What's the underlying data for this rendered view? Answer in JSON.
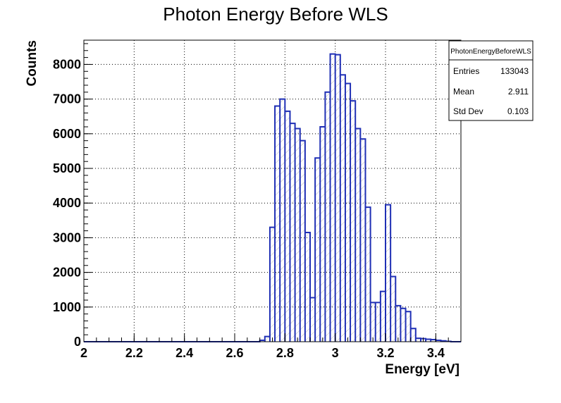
{
  "chart_data": {
    "type": "bar",
    "title": "Photon Energy Before WLS",
    "xlabel": "Energy [eV]",
    "ylabel": "Counts",
    "xlim": [
      2.0,
      3.5
    ],
    "ylim": [
      0,
      8700
    ],
    "grid": true,
    "bin_width": 0.02,
    "x_ticks": [
      {
        "value": 2.0,
        "label": "2"
      },
      {
        "value": 2.2,
        "label": "2.2"
      },
      {
        "value": 2.4,
        "label": "2.4"
      },
      {
        "value": 2.6,
        "label": "2.6"
      },
      {
        "value": 2.8,
        "label": "2.8"
      },
      {
        "value": 3.0,
        "label": "3"
      },
      {
        "value": 3.2,
        "label": "3.2"
      },
      {
        "value": 3.4,
        "label": "3.4"
      }
    ],
    "y_ticks": [
      {
        "value": 0,
        "label": "0"
      },
      {
        "value": 1000,
        "label": "1000"
      },
      {
        "value": 2000,
        "label": "2000"
      },
      {
        "value": 3000,
        "label": "3000"
      },
      {
        "value": 4000,
        "label": "4000"
      },
      {
        "value": 5000,
        "label": "5000"
      },
      {
        "value": 6000,
        "label": "6000"
      },
      {
        "value": 7000,
        "label": "7000"
      },
      {
        "value": 8000,
        "label": "8000"
      }
    ],
    "bins": [
      {
        "x": 2.71,
        "y": 40
      },
      {
        "x": 2.73,
        "y": 150
      },
      {
        "x": 2.75,
        "y": 3300
      },
      {
        "x": 2.77,
        "y": 6800
      },
      {
        "x": 2.79,
        "y": 7000
      },
      {
        "x": 2.81,
        "y": 6650
      },
      {
        "x": 2.83,
        "y": 6300
      },
      {
        "x": 2.85,
        "y": 6150
      },
      {
        "x": 2.87,
        "y": 5800
      },
      {
        "x": 2.89,
        "y": 3150
      },
      {
        "x": 2.91,
        "y": 1270
      },
      {
        "x": 2.93,
        "y": 5300
      },
      {
        "x": 2.95,
        "y": 6200
      },
      {
        "x": 2.97,
        "y": 7200
      },
      {
        "x": 2.99,
        "y": 8300
      },
      {
        "x": 3.01,
        "y": 8280
      },
      {
        "x": 3.03,
        "y": 7700
      },
      {
        "x": 3.05,
        "y": 7450
      },
      {
        "x": 3.07,
        "y": 6950
      },
      {
        "x": 3.09,
        "y": 6150
      },
      {
        "x": 3.11,
        "y": 5850
      },
      {
        "x": 3.13,
        "y": 3880
      },
      {
        "x": 3.15,
        "y": 1130
      },
      {
        "x": 3.17,
        "y": 1130
      },
      {
        "x": 3.19,
        "y": 1450
      },
      {
        "x": 3.21,
        "y": 3950
      },
      {
        "x": 3.23,
        "y": 1880
      },
      {
        "x": 3.25,
        "y": 1040
      },
      {
        "x": 3.27,
        "y": 960
      },
      {
        "x": 3.29,
        "y": 870
      },
      {
        "x": 3.31,
        "y": 380
      },
      {
        "x": 3.33,
        "y": 100
      },
      {
        "x": 3.35,
        "y": 90
      },
      {
        "x": 3.37,
        "y": 70
      },
      {
        "x": 3.39,
        "y": 60
      },
      {
        "x": 3.41,
        "y": 40
      },
      {
        "x": 3.43,
        "y": 25
      },
      {
        "x": 3.45,
        "y": 10
      }
    ],
    "line_color": "#1f2fb5",
    "fill_hatch_color": "#b8b8b8"
  },
  "stats_box": {
    "name": "PhotonEnergyBeforeWLS",
    "rows": [
      {
        "label": "Entries",
        "value": "133043"
      },
      {
        "label": "Mean",
        "value": "2.911"
      },
      {
        "label": "Std Dev",
        "value": "0.103"
      }
    ]
  }
}
